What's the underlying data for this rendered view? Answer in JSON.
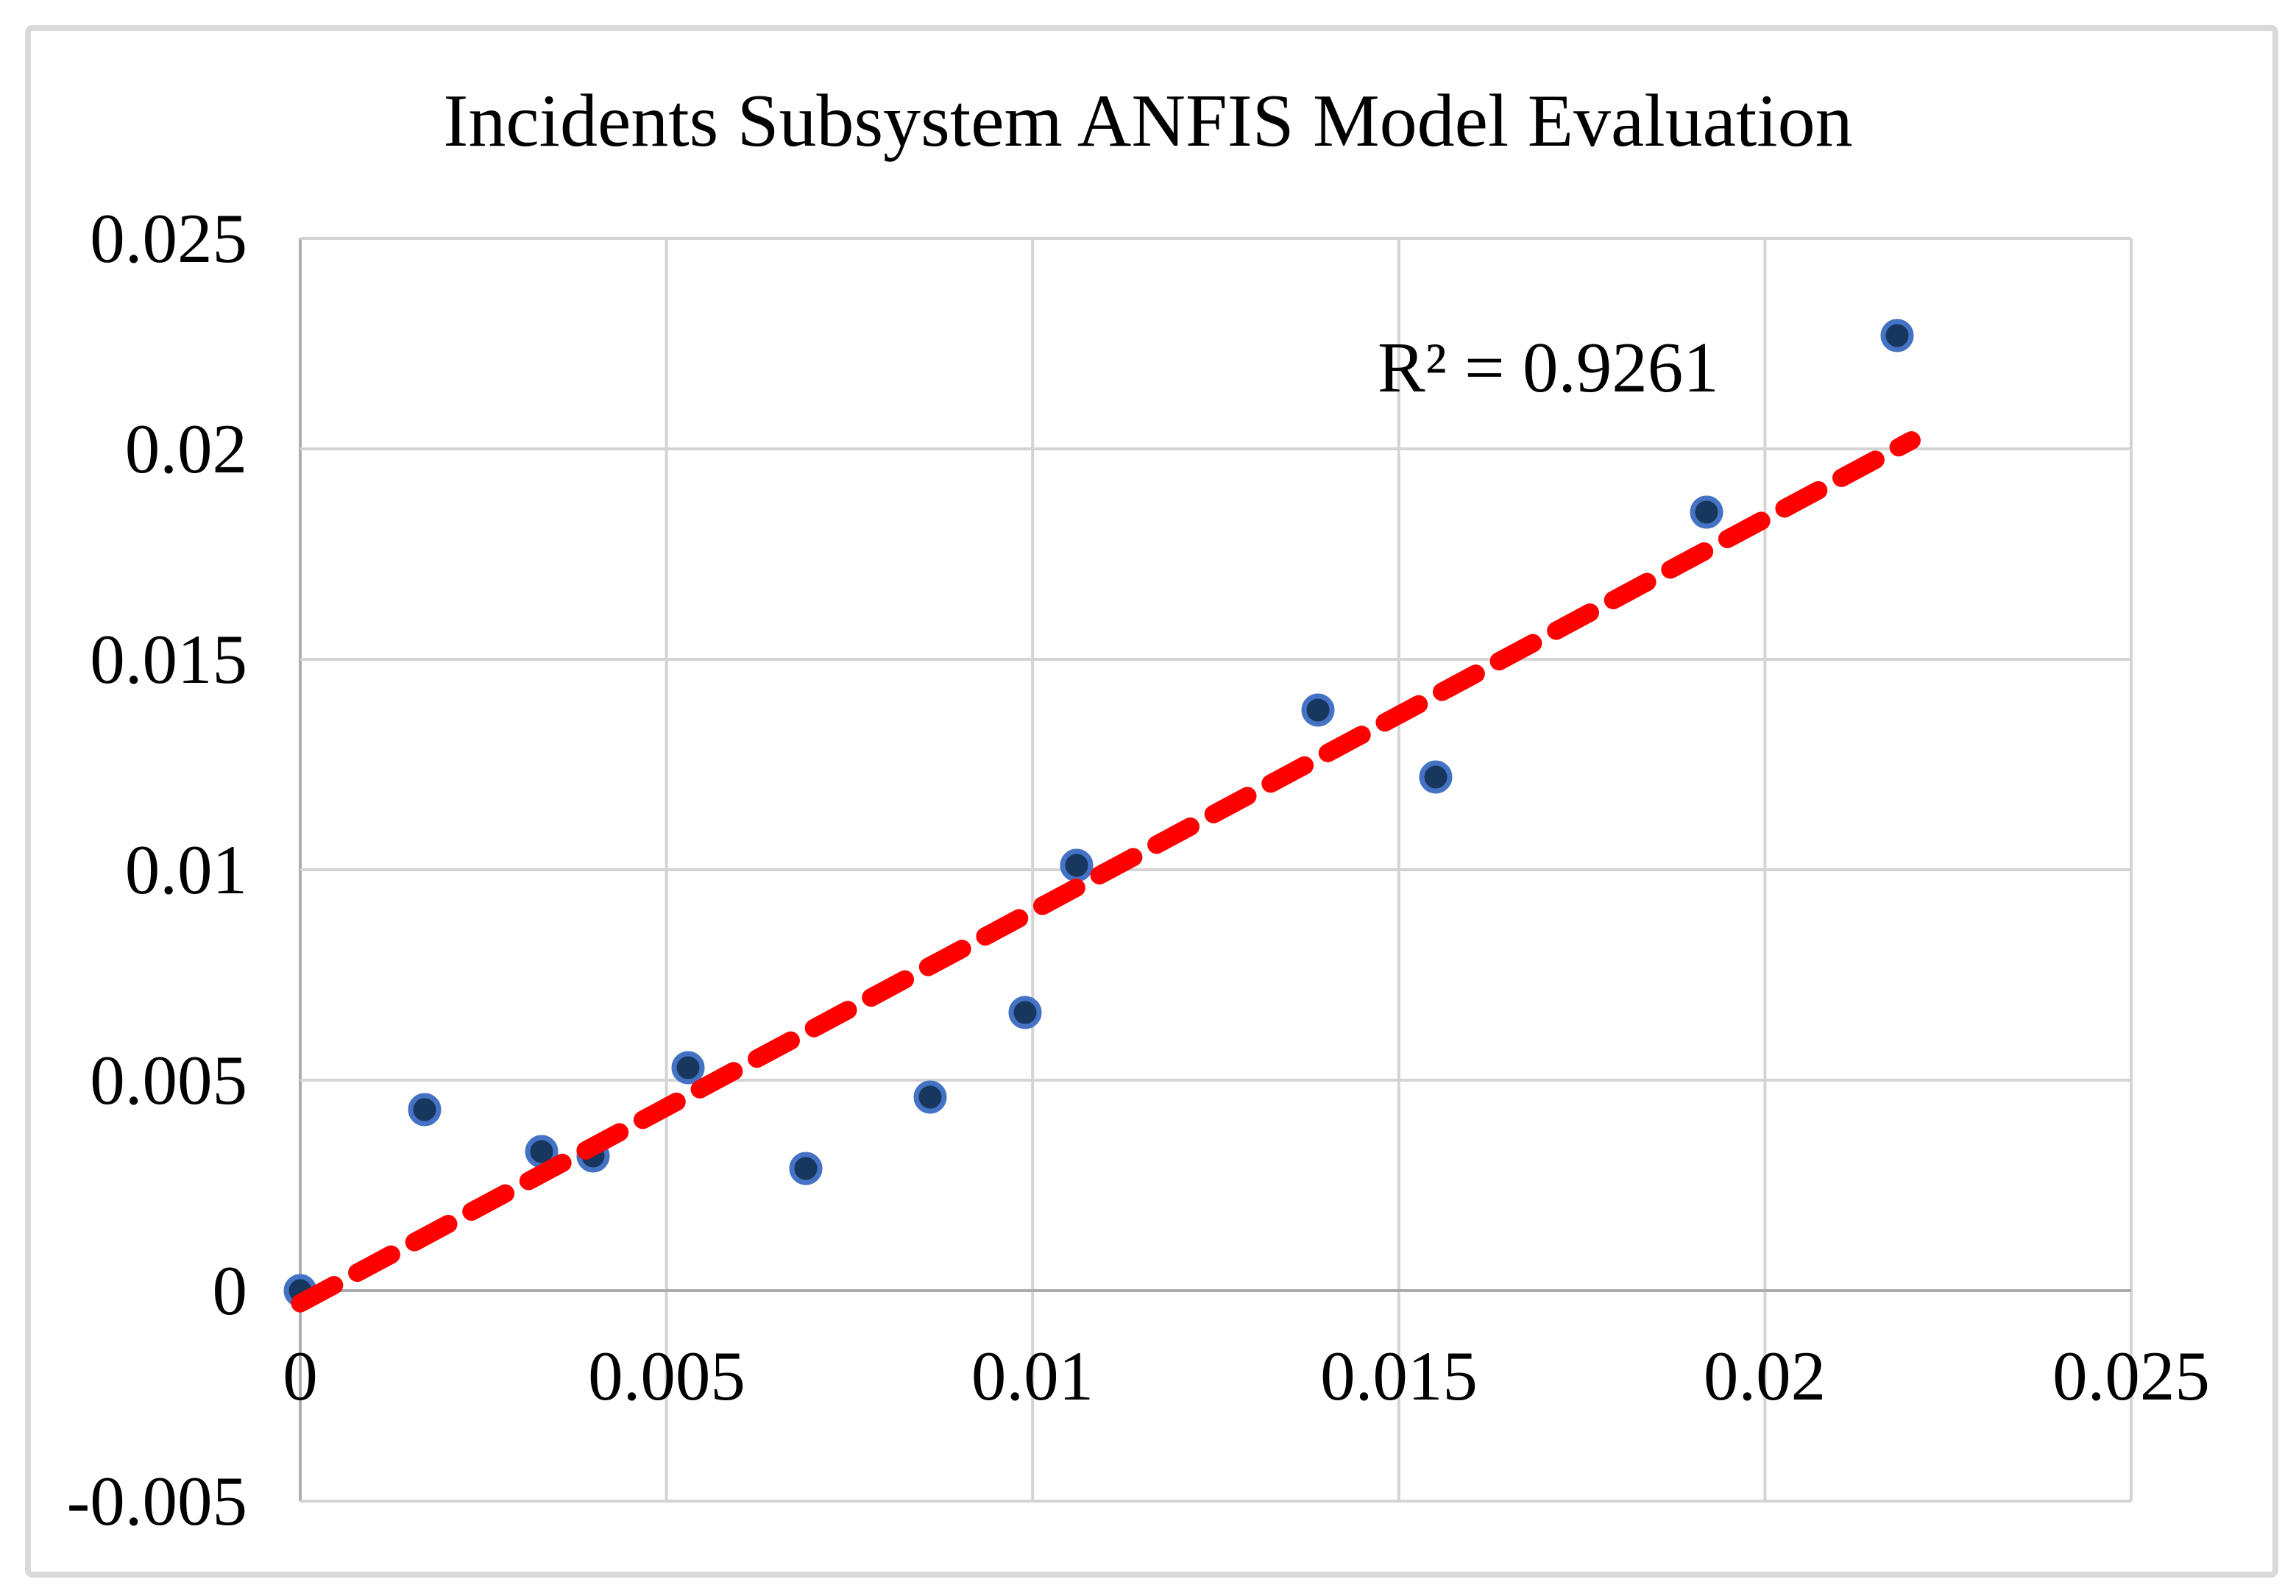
{
  "chart_title": "Incidents Subsystem ANFIS Model Evaluation",
  "annotation_label": "R² = 0.9261",
  "chart_data": {
    "type": "scatter",
    "title": "Incidents Subsystem ANFIS Model Evaluation",
    "xlabel": "",
    "ylabel": "",
    "xlim": [
      0,
      0.025
    ],
    "ylim": [
      -0.005,
      0.025
    ],
    "grid": true,
    "legend": false,
    "x_ticks": [
      0,
      0.005,
      0.01,
      0.015,
      0.02,
      0.025
    ],
    "y_ticks": [
      -0.005,
      0,
      0.005,
      0.01,
      0.015,
      0.02,
      0.025
    ],
    "x_tick_labels": [
      "0",
      "0.005",
      "0.01",
      "0.015",
      "0.02",
      "0.025"
    ],
    "y_tick_labels": [
      "-0.005",
      "0",
      "0.005",
      "0.01",
      "0.015",
      "0.02",
      "0.025"
    ],
    "points": [
      [
        0.0,
        0.0
      ],
      [
        0.0017,
        0.0043
      ],
      [
        0.0033,
        0.0033
      ],
      [
        0.004,
        0.0032
      ],
      [
        0.0053,
        0.0053
      ],
      [
        0.0069,
        0.0029
      ],
      [
        0.0086,
        0.0046
      ],
      [
        0.0099,
        0.0066
      ],
      [
        0.0106,
        0.0101
      ],
      [
        0.0139,
        0.0138
      ],
      [
        0.0155,
        0.0122
      ],
      [
        0.0192,
        0.0185
      ],
      [
        0.0218,
        0.0227
      ]
    ],
    "trendline": {
      "style": "dashed",
      "start": [
        0.0,
        -0.0003
      ],
      "end": [
        0.022,
        0.0202
      ],
      "r_squared": 0.9261
    },
    "annotation": "R² = 0.9261"
  },
  "colors": {
    "marker_fill": "#17375E",
    "marker_border": "#4472C4",
    "trendline": "#FF0000",
    "gridline": "#D4D4D4",
    "axis_line": "#ACACAC",
    "figure_border": "#D9D9D9",
    "text": "#000000"
  }
}
